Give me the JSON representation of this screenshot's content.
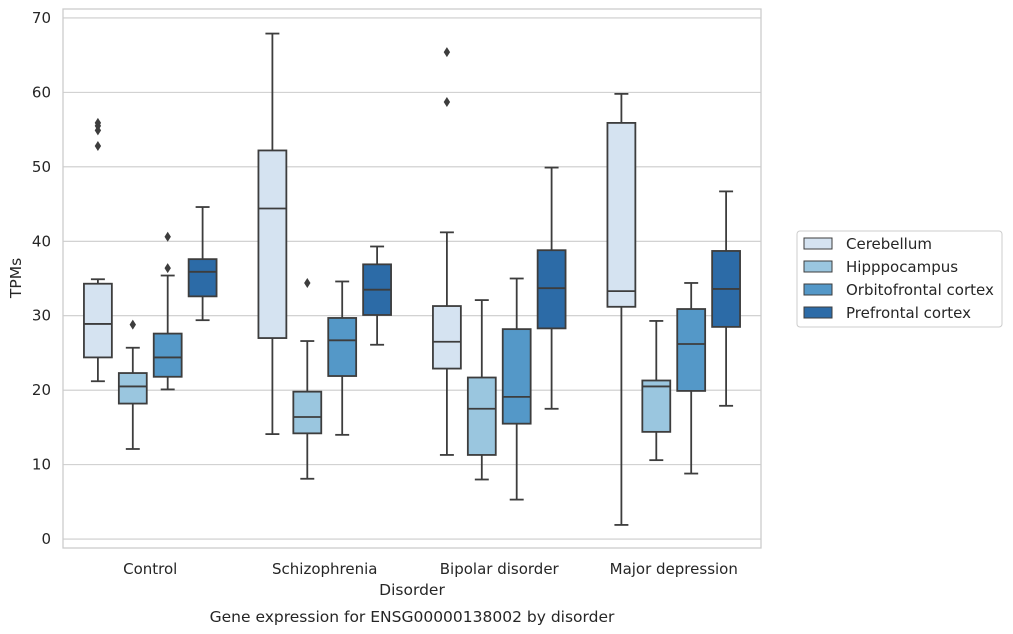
{
  "chart_data": {
    "type": "box",
    "title": "Gene expression for ENSG00000138002 by disorder",
    "xlabel": "Disorder",
    "ylabel": "TPMs",
    "ylim": [
      -1.2,
      71.2
    ],
    "yticks": [
      0,
      10,
      20,
      30,
      40,
      50,
      60,
      70
    ],
    "grid": "horizontal",
    "legend_position": "right",
    "categories": [
      "Control",
      "Schizophrenia",
      "Bipolar disorder",
      "Major depression"
    ],
    "series": [
      {
        "name": "Cerebellum",
        "color": "#d5e3f1",
        "boxes": [
          {
            "whisker_low": 21.2,
            "q1": 24.4,
            "median": 28.9,
            "q3": 34.3,
            "whisker_high": 34.9,
            "outliers": [
              52.8,
              54.9,
              55.5,
              55.9
            ]
          },
          {
            "whisker_low": 14.1,
            "q1": 27.0,
            "median": 44.4,
            "q3": 52.2,
            "whisker_high": 67.9,
            "outliers": []
          },
          {
            "whisker_low": 11.3,
            "q1": 22.9,
            "median": 26.5,
            "q3": 31.3,
            "whisker_high": 41.2,
            "outliers": [
              58.7,
              65.4
            ]
          },
          {
            "whisker_low": 1.9,
            "q1": 31.2,
            "median": 33.3,
            "q3": 55.9,
            "whisker_high": 59.8,
            "outliers": []
          }
        ]
      },
      {
        "name": "Hipppocampus",
        "color": "#9ac6df",
        "boxes": [
          {
            "whisker_low": 12.1,
            "q1": 18.2,
            "median": 20.5,
            "q3": 22.3,
            "whisker_high": 25.7,
            "outliers": [
              28.8
            ]
          },
          {
            "whisker_low": 8.1,
            "q1": 14.2,
            "median": 16.4,
            "q3": 19.8,
            "whisker_high": 26.6,
            "outliers": [
              34.4
            ]
          },
          {
            "whisker_low": 8.0,
            "q1": 11.3,
            "median": 17.5,
            "q3": 21.7,
            "whisker_high": 32.1,
            "outliers": []
          },
          {
            "whisker_low": 10.6,
            "q1": 14.4,
            "median": 20.5,
            "q3": 21.3,
            "whisker_high": 29.3,
            "outliers": []
          }
        ]
      },
      {
        "name": "Orbitofrontal cortex",
        "color": "#5498c8",
        "boxes": [
          {
            "whisker_low": 20.1,
            "q1": 21.8,
            "median": 24.4,
            "q3": 27.6,
            "whisker_high": 35.4,
            "outliers": [
              36.4,
              40.6
            ]
          },
          {
            "whisker_low": 14.0,
            "q1": 21.9,
            "median": 26.7,
            "q3": 29.7,
            "whisker_high": 34.6,
            "outliers": []
          },
          {
            "whisker_low": 5.3,
            "q1": 15.5,
            "median": 19.1,
            "q3": 28.2,
            "whisker_high": 35.0,
            "outliers": []
          },
          {
            "whisker_low": 8.8,
            "q1": 19.9,
            "median": 26.2,
            "q3": 30.9,
            "whisker_high": 34.4,
            "outliers": []
          }
        ]
      },
      {
        "name": "Prefrontal cortex",
        "color": "#2c6ba7",
        "boxes": [
          {
            "whisker_low": 29.4,
            "q1": 32.6,
            "median": 35.9,
            "q3": 37.6,
            "whisker_high": 44.6,
            "outliers": []
          },
          {
            "whisker_low": 26.1,
            "q1": 30.1,
            "median": 33.5,
            "q3": 36.9,
            "whisker_high": 39.3,
            "outliers": []
          },
          {
            "whisker_low": 17.5,
            "q1": 28.3,
            "median": 33.7,
            "q3": 38.8,
            "whisker_high": 49.9,
            "outliers": []
          },
          {
            "whisker_low": 17.9,
            "q1": 28.5,
            "median": 33.6,
            "q3": 38.7,
            "whisker_high": 46.7,
            "outliers": []
          }
        ]
      }
    ]
  }
}
